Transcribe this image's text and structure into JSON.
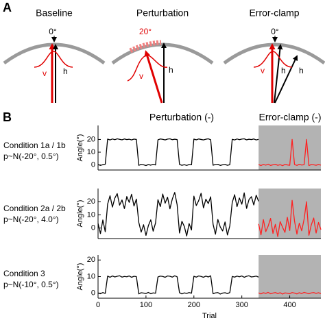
{
  "panel_a": {
    "label": "A",
    "panels": [
      {
        "title": "Baseline",
        "angle_label": "0°",
        "v_label": "v",
        "h_label": "h"
      },
      {
        "title": "Perturbation",
        "angle_label": "20°",
        "v_label": "v",
        "h_label": "h"
      },
      {
        "title": "Error-clamp",
        "angle_label": "0°",
        "v_label": "v",
        "h_labels": [
          "h",
          "h"
        ]
      }
    ]
  },
  "panel_b": {
    "label": "B",
    "headers": [
      "Perturbation (-)",
      "Error-clamp (-)"
    ],
    "conditions": [
      [
        "Condition 1a / 1b",
        "p~N(-20°, 0.5°)"
      ],
      [
        "Condition 2a / 2b",
        "p~N(-20°, 4.0°)"
      ],
      [
        "Condition 3",
        "p~N(-10°, 0.5°)"
      ]
    ]
  },
  "chart_data": [
    {
      "type": "line",
      "ylabel": "Angle(°)",
      "xlim": [
        0,
        465
      ],
      "ylim": [
        -4,
        31
      ],
      "yticks": [
        0,
        10,
        20
      ],
      "shaded_xlim": [
        335,
        465
      ],
      "shade_color": "#b3b3b3",
      "series": [
        {
          "color": "#000000",
          "x": [
            0,
            5,
            10,
            15,
            20,
            25,
            30,
            35,
            40,
            45,
            50,
            55,
            60,
            65,
            70,
            75,
            80,
            85,
            90,
            95,
            100,
            105,
            110,
            115,
            120,
            125,
            130,
            135,
            140,
            145,
            150,
            155,
            160,
            165,
            170,
            175,
            180,
            185,
            190,
            195,
            200,
            205,
            210,
            215,
            220,
            225,
            230,
            235,
            240,
            245,
            250,
            255,
            260,
            265,
            270,
            275,
            280,
            285,
            290,
            295,
            300,
            305,
            310,
            315,
            320,
            325,
            330,
            335
          ],
          "values": [
            0.3,
            -0.4,
            0.2,
            0.5,
            20.3,
            19.6,
            20.4,
            19.8,
            20.5,
            20.1,
            19.7,
            20.4,
            19.9,
            20.2,
            19.6,
            20.3,
            20.0,
            -0.3,
            0.4,
            0.1,
            -0.5,
            0.3,
            -0.2,
            0.5,
            0.0,
            19.7,
            20.4,
            20.1,
            19.6,
            20.3,
            20.5,
            19.8,
            20.2,
            19.9,
            0.4,
            -0.3,
            0.2,
            -0.4,
            0.3,
            0.1,
            20.3,
            19.7,
            20.4,
            20.0,
            19.6,
            20.2,
            20.5,
            19.8,
            -0.2,
            0.3,
            0.5,
            -0.4,
            0.1,
            0.4,
            -0.3,
            0.2,
            20.1,
            19.6,
            20.4,
            19.8,
            20.3,
            20.5,
            19.7,
            20.2,
            19.9,
            20.4,
            19.6,
            20.1
          ]
        },
        {
          "color": "#ff2020",
          "x": [
            335,
            340,
            345,
            350,
            355,
            360,
            365,
            370,
            375,
            380,
            385,
            390,
            395,
            400,
            405,
            410,
            415,
            420,
            425,
            430,
            435,
            440,
            445,
            450,
            455,
            460,
            465
          ],
          "values": [
            0.3,
            -0.5,
            0.4,
            -0.2,
            0.6,
            -0.4,
            0.1,
            0.5,
            -0.3,
            0.2,
            -0.6,
            0.4,
            0.0,
            -0.3,
            20,
            0.3,
            -0.4,
            0.5,
            -0.1,
            0.2,
            20,
            -0.5,
            0.3,
            0.1,
            -0.3,
            0.4,
            -0.2
          ]
        }
      ]
    },
    {
      "type": "line",
      "ylabel": "Angle(°)",
      "xlim": [
        0,
        465
      ],
      "ylim": [
        -8,
        30
      ],
      "yticks": [
        0,
        10,
        20
      ],
      "shaded_xlim": [
        335,
        465
      ],
      "shade_color": "#b3b3b3",
      "series": [
        {
          "color": "#000000",
          "x": [
            0,
            5,
            10,
            15,
            20,
            25,
            30,
            35,
            40,
            45,
            50,
            55,
            60,
            65,
            70,
            75,
            80,
            85,
            90,
            95,
            100,
            105,
            110,
            115,
            120,
            125,
            130,
            135,
            140,
            145,
            150,
            155,
            160,
            165,
            170,
            175,
            180,
            185,
            190,
            195,
            200,
            205,
            210,
            215,
            220,
            225,
            230,
            235,
            240,
            245,
            250,
            255,
            260,
            265,
            270,
            275,
            280,
            285,
            290,
            295,
            300,
            305,
            310,
            315,
            320,
            325,
            330,
            335
          ],
          "values": [
            3.5,
            -4.2,
            6.1,
            -2.8,
            18.2,
            24.5,
            15.9,
            22.7,
            26.1,
            17.4,
            21.3,
            14.8,
            23.9,
            19.5,
            25.6,
            16.7,
            22.0,
            4.3,
            -3.1,
            2.5,
            -5.6,
            1.8,
            6.2,
            -2.4,
            3.9,
            21.5,
            16.3,
            25.8,
            18.9,
            23.4,
            14.6,
            22.1,
            27.0,
            17.8,
            -3.8,
            5.1,
            1.2,
            -6.0,
            3.4,
            -1.5,
            24.2,
            17.1,
            20.8,
            26.4,
            15.3,
            21.9,
            18.6,
            23.7,
            2.9,
            -4.7,
            6.5,
            0.8,
            -2.2,
            4.6,
            -5.3,
            1.7,
            19.4,
            25.3,
            16.2,
            22.8,
            18.1,
            26.7,
            14.9,
            21.6,
            23.8,
            17.5,
            24.9,
            20.3
          ]
        },
        {
          "color": "#ff2020",
          "x": [
            335,
            340,
            345,
            350,
            355,
            360,
            365,
            370,
            375,
            380,
            385,
            390,
            395,
            400,
            405,
            410,
            415,
            420,
            425,
            430,
            435,
            440,
            445,
            450,
            455,
            460,
            465
          ],
          "values": [
            3.1,
            -5.2,
            6.4,
            -2.7,
            1.5,
            7.3,
            -4.1,
            2.8,
            -6.5,
            4.9,
            0.6,
            -3.3,
            8.1,
            -1.9,
            21,
            5.2,
            -4.6,
            3.7,
            -2.1,
            6.8,
            20,
            -5.5,
            2.4,
            7.6,
            -3.8,
            4.2,
            -1.2
          ]
        }
      ]
    },
    {
      "type": "line",
      "ylabel": "Angle(°)",
      "xlabel": "Trial",
      "xlim": [
        0,
        465
      ],
      "ylim": [
        -3,
        23
      ],
      "yticks": [
        0,
        10,
        20
      ],
      "xticks": [
        0,
        100,
        200,
        300,
        400
      ],
      "shaded_xlim": [
        335,
        465
      ],
      "shade_color": "#b3b3b3",
      "series": [
        {
          "color": "#000000",
          "x": [
            0,
            5,
            10,
            15,
            20,
            25,
            30,
            35,
            40,
            45,
            50,
            55,
            60,
            65,
            70,
            75,
            80,
            85,
            90,
            95,
            100,
            105,
            110,
            115,
            120,
            125,
            130,
            135,
            140,
            145,
            150,
            155,
            160,
            165,
            170,
            175,
            180,
            185,
            190,
            195,
            200,
            205,
            210,
            215,
            220,
            225,
            230,
            235,
            240,
            245,
            250,
            255,
            260,
            265,
            270,
            275,
            280,
            285,
            290,
            295,
            300,
            305,
            310,
            315,
            320,
            325,
            330,
            335
          ],
          "values": [
            0.2,
            -0.3,
            0.4,
            -0.1,
            10.3,
            9.6,
            10.4,
            9.8,
            10.2,
            10.5,
            9.7,
            10.1,
            9.9,
            10.4,
            9.6,
            10.2,
            10.0,
            -0.4,
            0.3,
            0.1,
            -0.2,
            0.5,
            -0.3,
            0.2,
            0.0,
            9.8,
            10.3,
            10.1,
            9.6,
            10.4,
            10.2,
            9.7,
            10.5,
            9.9,
            0.3,
            -0.4,
            0.2,
            -0.1,
            0.4,
            0.0,
            10.2,
            9.7,
            10.4,
            10.1,
            9.6,
            10.3,
            9.8,
            10.5,
            -0.3,
            0.2,
            0.4,
            -0.5,
            0.1,
            0.3,
            -0.2,
            0.4,
            10.1,
            9.7,
            10.3,
            9.9,
            10.4,
            9.6,
            10.2,
            10.5,
            9.8,
            10.0,
            10.3,
            9.7
          ]
        },
        {
          "color": "#ff2020",
          "x": [
            335,
            340,
            345,
            350,
            355,
            360,
            365,
            370,
            375,
            380,
            385,
            390,
            395,
            400,
            405,
            410,
            415,
            420,
            425,
            430,
            435,
            440,
            445,
            450,
            455,
            460,
            465
          ],
          "values": [
            0.2,
            -0.4,
            0.3,
            -0.1,
            0.5,
            -0.3,
            0.1,
            0.4,
            -0.2,
            0.3,
            -0.5,
            0.2,
            0.0,
            -0.3,
            0.4,
            0.1,
            -0.4,
            0.3,
            -0.2,
            0.5,
            0.1,
            -0.3,
            0.2,
            0.4,
            -0.1,
            0.3,
            -0.2
          ]
        }
      ]
    }
  ]
}
